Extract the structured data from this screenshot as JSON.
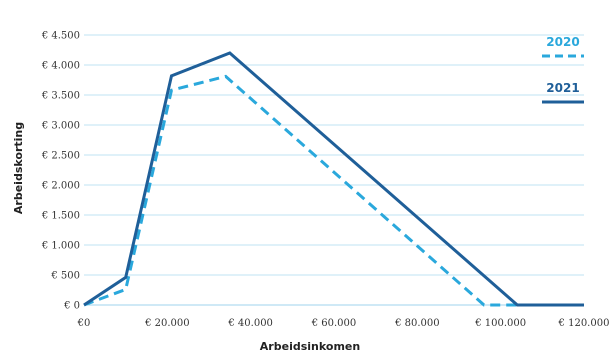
{
  "chart_data": {
    "type": "line",
    "xlabel": "Arbeidsinkomen",
    "ylabel": "Arbeidskorting",
    "xlim": [
      0,
      120000
    ],
    "ylim": [
      0,
      4500
    ],
    "x_ticks": [
      0,
      20000,
      40000,
      60000,
      80000,
      100000,
      120000
    ],
    "x_tick_labels": [
      "€0",
      "€ 20.000",
      "€ 40.000",
      "€ 60.000",
      "€ 80.000",
      "€ 100.000",
      "€ 120.000"
    ],
    "y_ticks": [
      0,
      500,
      1000,
      1500,
      2000,
      2500,
      3000,
      3500,
      4000,
      4500
    ],
    "y_tick_labels": [
      "€ 0",
      "€ 500",
      "€ 1.000",
      "€ 1.500",
      "€ 2.000",
      "€ 2.500",
      "€ 3.000",
      "€ 3.500",
      "€ 4.000",
      "€ 4.500"
    ],
    "grid": true,
    "legend_position": "top-right",
    "series": [
      {
        "name": "2020",
        "color": "#2aa8dc",
        "style": "dashed",
        "points": [
          [
            0,
            0
          ],
          [
            10000,
            260
          ],
          [
            21000,
            3580
          ],
          [
            34000,
            3810
          ],
          [
            96000,
            0
          ],
          [
            120000,
            0
          ]
        ]
      },
      {
        "name": "2021",
        "color": "#1f5f99",
        "style": "solid",
        "points": [
          [
            0,
            0
          ],
          [
            10000,
            460
          ],
          [
            21000,
            3820
          ],
          [
            35000,
            4200
          ],
          [
            104000,
            0
          ],
          [
            120000,
            0
          ]
        ]
      }
    ]
  }
}
